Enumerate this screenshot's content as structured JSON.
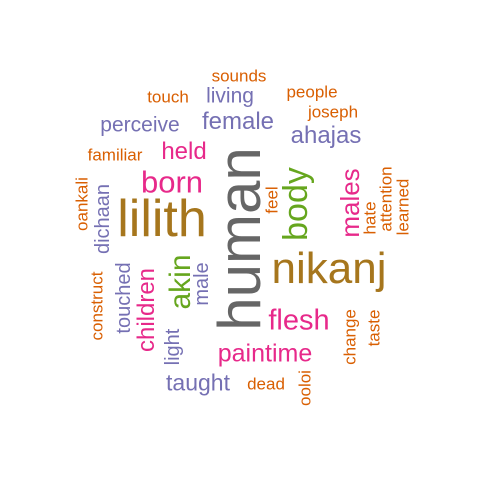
{
  "colors": {
    "orange": "#d95f02",
    "purple": "#7570b3",
    "magenta": "#e7298a",
    "green": "#66a61e",
    "gold": "#a6761d",
    "gray": "#666666"
  },
  "words": [
    {
      "text": "human",
      "color": "gray"
    },
    {
      "text": "nikanj",
      "color": "gold"
    },
    {
      "text": "lilith",
      "color": "gold"
    },
    {
      "text": "body",
      "color": "green"
    },
    {
      "text": "born",
      "color": "magenta"
    },
    {
      "text": "akin",
      "color": "green"
    },
    {
      "text": "children",
      "color": "magenta"
    },
    {
      "text": "flesh",
      "color": "magenta"
    },
    {
      "text": "paintime",
      "color": "magenta"
    },
    {
      "text": "males",
      "color": "magenta"
    },
    {
      "text": "held",
      "color": "magenta"
    },
    {
      "text": "female",
      "color": "purple"
    },
    {
      "text": "perceive",
      "color": "purple"
    },
    {
      "text": "ahajas",
      "color": "purple"
    },
    {
      "text": "living",
      "color": "purple"
    },
    {
      "text": "taught",
      "color": "purple"
    },
    {
      "text": "touched",
      "color": "purple"
    },
    {
      "text": "dichaan",
      "color": "purple"
    },
    {
      "text": "male",
      "color": "purple"
    },
    {
      "text": "light",
      "color": "purple"
    },
    {
      "text": "sounds",
      "color": "orange"
    },
    {
      "text": "touch",
      "color": "orange"
    },
    {
      "text": "people",
      "color": "orange"
    },
    {
      "text": "joseph",
      "color": "orange"
    },
    {
      "text": "familiar",
      "color": "orange"
    },
    {
      "text": "oankali",
      "color": "orange"
    },
    {
      "text": "feel",
      "color": "orange"
    },
    {
      "text": "attention",
      "color": "orange"
    },
    {
      "text": "hate",
      "color": "orange"
    },
    {
      "text": "learned",
      "color": "orange"
    },
    {
      "text": "construct",
      "color": "orange"
    },
    {
      "text": "change",
      "color": "orange"
    },
    {
      "text": "taste",
      "color": "orange"
    },
    {
      "text": "dead",
      "color": "orange"
    },
    {
      "text": "ooloi",
      "color": "orange"
    }
  ]
}
